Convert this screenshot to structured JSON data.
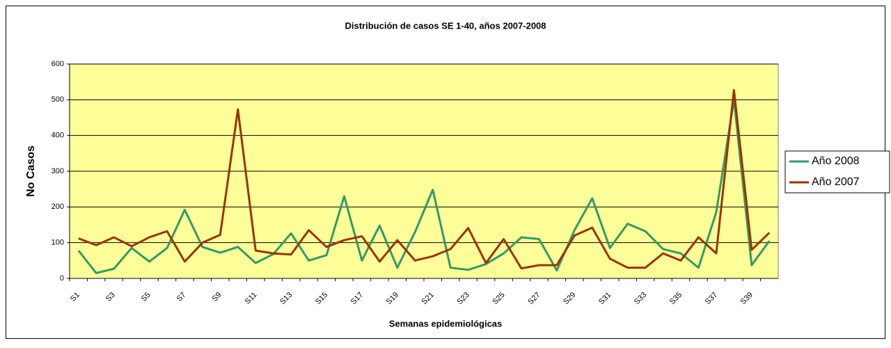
{
  "chart_data": {
    "type": "line",
    "title": "Distribución de casos SE 1-40, años 2007-2008",
    "x_label": "Semanas epidemiológicas",
    "y_label": "No Casos",
    "categories": [
      "S1",
      null,
      "S3",
      null,
      "S5",
      null,
      "S7",
      null,
      "S9",
      null,
      "S11",
      null,
      "S13",
      null,
      "S15",
      null,
      "S17",
      null,
      "S19",
      null,
      "S21",
      null,
      "S23",
      null,
      "S25",
      null,
      "S27",
      null,
      "S29",
      null,
      "S31",
      null,
      "S33",
      null,
      "S35",
      null,
      "S37",
      null,
      "S39",
      null
    ],
    "series": [
      {
        "name": "Año 2008",
        "color": "#339966",
        "values": [
          78,
          15,
          27,
          85,
          47,
          85,
          192,
          88,
          72,
          88,
          43,
          68,
          126,
          50,
          65,
          230,
          50,
          148,
          30,
          130,
          248,
          30,
          24,
          40,
          70,
          115,
          110,
          22,
          135,
          224,
          85,
          153,
          132,
          82,
          70,
          30,
          185,
          500,
          37,
          105
        ]
      },
      {
        "name": "Año 2007",
        "color": "#993300",
        "values": [
          112,
          93,
          115,
          90,
          115,
          132,
          47,
          100,
          122,
          473,
          78,
          70,
          67,
          135,
          88,
          107,
          118,
          47,
          107,
          50,
          62,
          82,
          141,
          43,
          110,
          28,
          37,
          37,
          120,
          142,
          55,
          30,
          30,
          70,
          50,
          115,
          70,
          527,
          80,
          128
        ]
      }
    ],
    "ylim": [
      0,
      600
    ],
    "yticks": [
      0,
      100,
      200,
      300,
      400,
      500,
      600
    ],
    "grid": true,
    "legend": "right",
    "plot_background": "#ffff99"
  }
}
